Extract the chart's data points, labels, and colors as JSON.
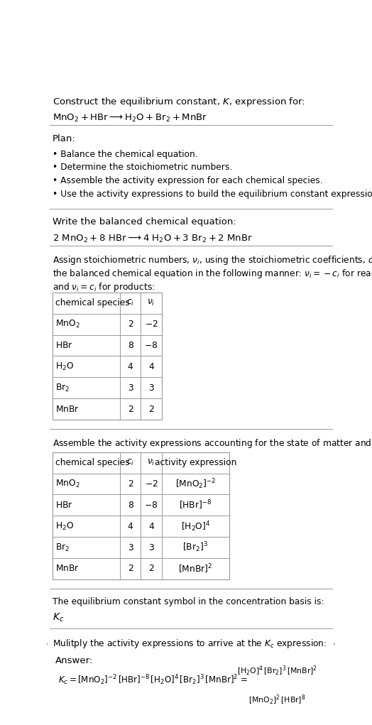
{
  "title_line1": "Construct the equilibrium constant, $K$, expression for:",
  "title_line2": "$\\mathrm{MnO_2 + HBr \\longrightarrow H_2O + Br_2 + MnBr}$",
  "plan_header": "Plan:",
  "plan_items": [
    "• Balance the chemical equation.",
    "• Determine the stoichiometric numbers.",
    "• Assemble the activity expression for each chemical species.",
    "• Use the activity expressions to build the equilibrium constant expression."
  ],
  "balanced_header": "Write the balanced chemical equation:",
  "balanced_eq": "$\\mathrm{2\\ MnO_2 + 8\\ HBr \\longrightarrow 4\\ H_2O + 3\\ Br_2 + 2\\ MnBr}$",
  "stoich_intro_l1": "Assign stoichiometric numbers, $\\nu_i$, using the stoichiometric coefficients, $c_i$, from",
  "stoich_intro_l2": "the balanced chemical equation in the following manner: $\\nu_i = -c_i$ for reactants",
  "stoich_intro_l3": "and $\\nu_i = c_i$ for products:",
  "table1_headers": [
    "chemical species",
    "$c_i$",
    "$\\nu_i$"
  ],
  "table1_rows": [
    [
      "$\\mathrm{MnO_2}$",
      "2",
      "$-2$"
    ],
    [
      "$\\mathrm{HBr}$",
      "8",
      "$-8$"
    ],
    [
      "$\\mathrm{H_2O}$",
      "4",
      "4"
    ],
    [
      "$\\mathrm{Br_2}$",
      "3",
      "3"
    ],
    [
      "$\\mathrm{MnBr}$",
      "2",
      "2"
    ]
  ],
  "activity_intro": "Assemble the activity expressions accounting for the state of matter and $\\nu_i$:",
  "table2_headers": [
    "chemical species",
    "$c_i$",
    "$\\nu_i$",
    "activity expression"
  ],
  "table2_rows": [
    [
      "$\\mathrm{MnO_2}$",
      "2",
      "$-2$",
      "$[\\mathrm{MnO_2}]^{-2}$"
    ],
    [
      "$\\mathrm{HBr}$",
      "8",
      "$-8$",
      "$[\\mathrm{HBr}]^{-8}$"
    ],
    [
      "$\\mathrm{H_2O}$",
      "4",
      "4",
      "$[\\mathrm{H_2O}]^{4}$"
    ],
    [
      "$\\mathrm{Br_2}$",
      "3",
      "3",
      "$[\\mathrm{Br_2}]^{3}$"
    ],
    [
      "$\\mathrm{MnBr}$",
      "2",
      "2",
      "$[\\mathrm{MnBr}]^{2}$"
    ]
  ],
  "kc_intro": "The equilibrium constant symbol in the concentration basis is:",
  "kc_symbol": "$K_c$",
  "multiply_intro": "Mulitply the activity expressions to arrive at the $K_c$ expression:",
  "answer_label": "Answer:",
  "kc_lhs": "$K_c = [\\mathrm{MnO_2}]^{-2}\\,[\\mathrm{HBr}]^{-8}\\,[\\mathrm{H_2O}]^{4}\\,[\\mathrm{Br_2}]^{3}\\,[\\mathrm{MnBr}]^{2}\\, =$",
  "kc_num": "$[\\mathrm{H_2O}]^{4}\\,[\\mathrm{Br_2}]^{3}\\,[\\mathrm{MnBr}]^{2}$",
  "kc_den": "$[\\mathrm{MnO_2}]^{2}\\,[\\mathrm{HBr}]^{8}$",
  "bg_color": "#ffffff",
  "answer_box_color": "#ddeeff",
  "answer_box_border": "#aabbdd",
  "text_color": "#000000",
  "table_line_color": "#999999",
  "font_size": 9.5
}
